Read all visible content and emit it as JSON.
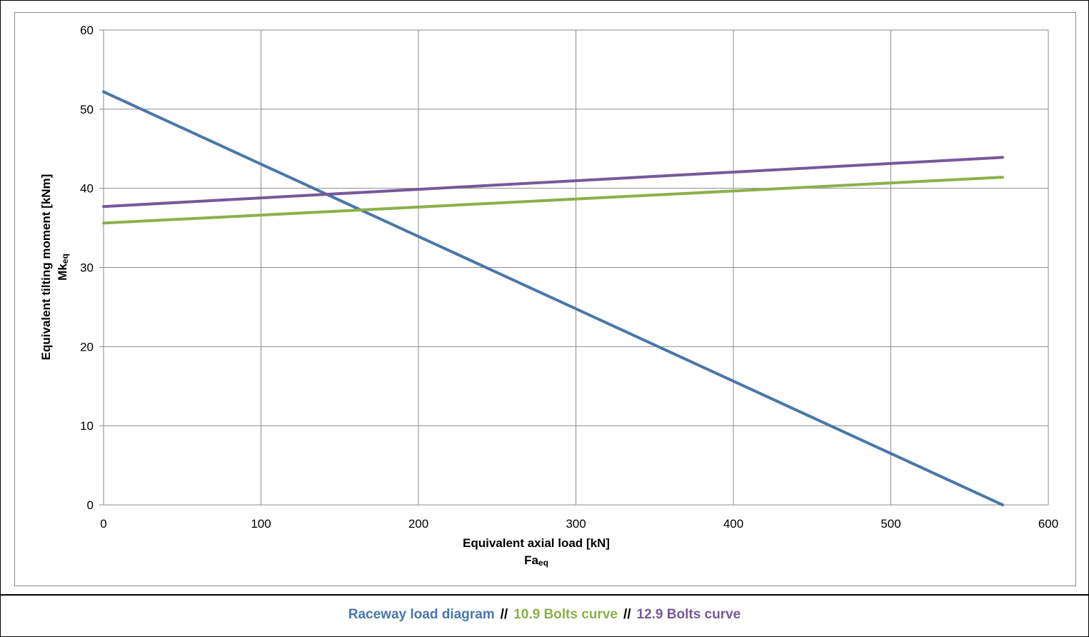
{
  "chart_data": {
    "type": "line",
    "xlabel": "Equivalent axial load [kN]",
    "xlabel_sub_main": "Fa",
    "xlabel_sub_script": "eq",
    "ylabel": "Equivalent tilting moment [kNm]",
    "ylabel_sub_main": "Mk",
    "ylabel_sub_script": "eq",
    "xlim": [
      0,
      600
    ],
    "ylim": [
      0,
      60
    ],
    "x_ticks": [
      0,
      100,
      200,
      300,
      400,
      500,
      600
    ],
    "y_ticks": [
      0,
      10,
      20,
      30,
      40,
      50,
      60
    ],
    "grid": true,
    "series": [
      {
        "name": "Raceway load diagram",
        "color": "#4a76aa",
        "x": [
          0,
          571
        ],
        "y": [
          52.2,
          0
        ]
      },
      {
        "name": "10.9 Bolts curve",
        "color": "#8cb04a",
        "x": [
          0,
          571
        ],
        "y": [
          35.6,
          41.4
        ]
      },
      {
        "name": "12.9 Bolts curve",
        "color": "#76599a",
        "x": [
          0,
          571
        ],
        "y": [
          37.7,
          43.9
        ]
      }
    ],
    "legend": {
      "position": "bottom",
      "separator": "//",
      "entries": [
        "Raceway load diagram",
        "10.9 Bolts curve",
        "12.9 Bolts curve"
      ]
    }
  }
}
